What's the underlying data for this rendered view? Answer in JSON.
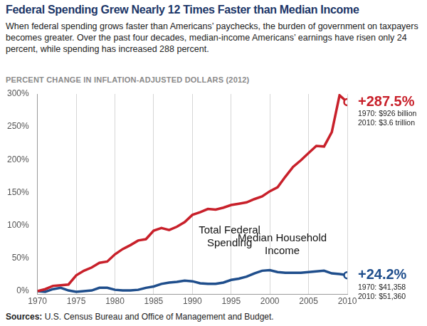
{
  "chart_data": {
    "type": "line",
    "title": "Federal Spending Grew Nearly 12 Times Faster than Median Income",
    "subtitle": "When federal spending grows faster than Americans’ paychecks, the burden of government on taxpayers becomes greater. Over the past four decades, median-income Americans’ earnings have risen only 24 percent, while spending has increased 288 percent.",
    "ylabel": "PERCENT CHANGE IN INFLATION-ADJUSTED DOLLARS (2012)",
    "source_label": "Sources:",
    "source": "U.S. Census Bureau and Office of Management and Budget.",
    "x": [
      1970,
      1971,
      1972,
      1973,
      1974,
      1975,
      1976,
      1977,
      1978,
      1979,
      1980,
      1981,
      1982,
      1983,
      1984,
      1985,
      1986,
      1987,
      1988,
      1989,
      1990,
      1991,
      1992,
      1993,
      1994,
      1995,
      1996,
      1997,
      1998,
      1999,
      2000,
      2001,
      2002,
      2003,
      2004,
      2005,
      2006,
      2007,
      2008,
      2009,
      2010
    ],
    "xlim": [
      1970,
      2010
    ],
    "xticks": [
      1970,
      1975,
      1980,
      1985,
      1990,
      1995,
      2000,
      2005,
      2010
    ],
    "ylim": [
      -5,
      300
    ],
    "yticks": [
      {
        "value": 0,
        "label": "0%"
      },
      {
        "value": 50,
        "label": "50%"
      },
      {
        "value": 100,
        "label": "100%"
      },
      {
        "value": 150,
        "label": "150%"
      },
      {
        "value": 200,
        "label": "200%"
      },
      {
        "value": 250,
        "label": "250%"
      },
      {
        "value": 300,
        "label": "300%"
      }
    ],
    "grid": "x",
    "series": [
      {
        "name": "Total Federal Spending",
        "color": "#c8202a",
        "marker": "end_circle",
        "end_label": "+287.5%",
        "notes": [
          "1970: $926 billion",
          "2010: $3.6 trillion"
        ],
        "values": [
          0,
          3,
          8,
          9,
          10,
          24,
          31,
          36,
          43,
          45,
          56,
          64,
          70,
          77,
          79,
          92,
          96,
          93,
          98,
          105,
          116,
          120,
          125,
          124,
          127,
          131,
          133,
          135,
          140,
          144,
          152,
          158,
          174,
          189,
          199,
          210,
          221,
          220,
          242,
          298,
          287.5
        ]
      },
      {
        "name": "Median Household Income",
        "color": "#1f4e8c",
        "marker": "end_circle",
        "end_label": "+24.2%",
        "notes": [
          "1970: $41,358",
          "2010: $51,360"
        ],
        "values": [
          0,
          -1,
          3,
          5,
          1,
          -1,
          0,
          1,
          5,
          5,
          2,
          1,
          1,
          2,
          5,
          7,
          11,
          13,
          14,
          16,
          15,
          12,
          11,
          11,
          13,
          17,
          19,
          22,
          27,
          31,
          32,
          29,
          28,
          28,
          28,
          29,
          30,
          31,
          27,
          26,
          24.2
        ]
      }
    ]
  }
}
